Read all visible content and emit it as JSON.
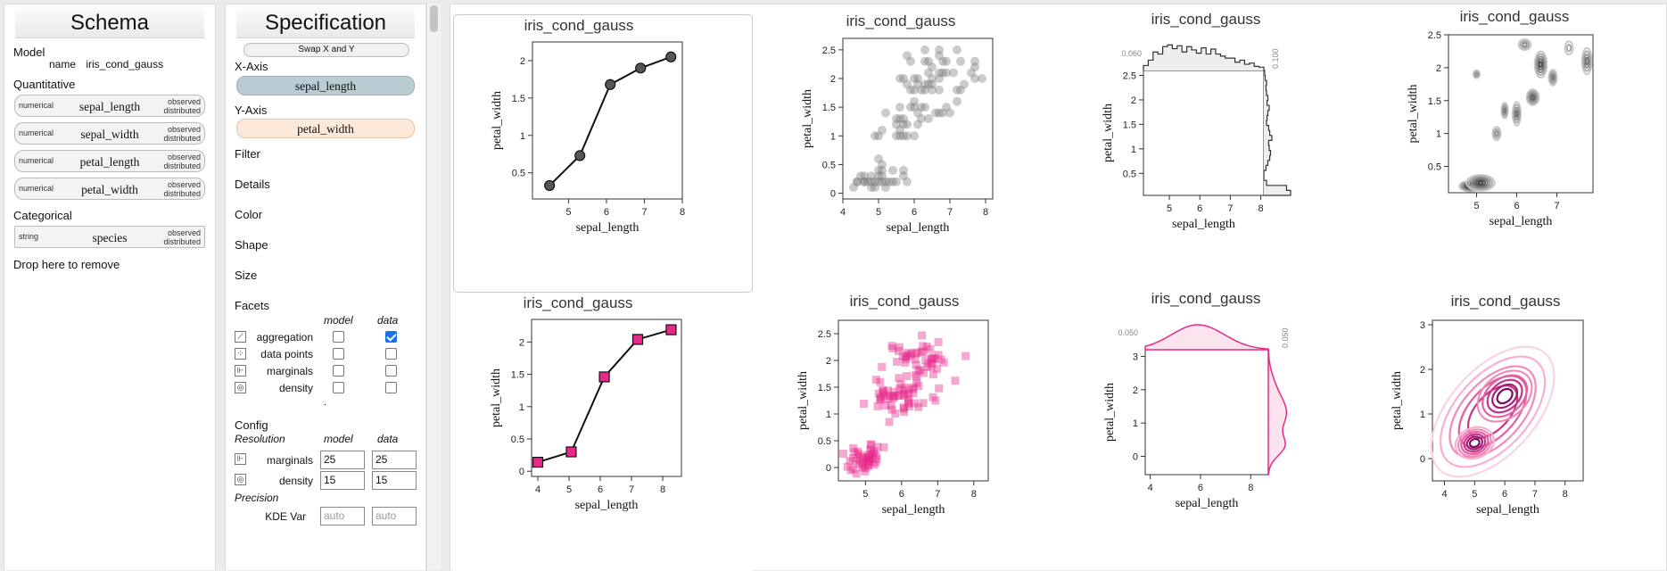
{
  "schema": {
    "title": "Schema",
    "model_label": "Model",
    "name_key": "name",
    "name_value": "iris_cond_gauss",
    "quant_label": "Quantitative",
    "quant_fields": [
      {
        "type": "numerical",
        "name": "sepal_length",
        "obs1": "observed",
        "obs2": "distributed"
      },
      {
        "type": "numerical",
        "name": "sepal_width",
        "obs1": "observed",
        "obs2": "distributed"
      },
      {
        "type": "numerical",
        "name": "petal_length",
        "obs1": "observed",
        "obs2": "distributed"
      },
      {
        "type": "numerical",
        "name": "petal_width",
        "obs1": "observed",
        "obs2": "distributed"
      }
    ],
    "cat_label": "Categorical",
    "cat_fields": [
      {
        "type": "string",
        "name": "species",
        "obs1": "observed",
        "obs2": "distributed"
      }
    ],
    "drop_label": "Drop here to remove"
  },
  "spec": {
    "title": "Specification",
    "swap_label": "Swap X and Y",
    "x_label": "X-Axis",
    "x_field": "sepal_length",
    "y_label": "Y-Axis",
    "y_field": "petal_width",
    "filter": "Filter",
    "details": "Details",
    "color": "Color",
    "shape": "Shape",
    "size": "Size",
    "facets": "Facets",
    "col_model": "model",
    "col_data": "data",
    "facet_rows": [
      {
        "name": "aggregation",
        "icon": "aggregation-icon",
        "model": false,
        "data": true
      },
      {
        "name": "data points",
        "icon": "data-points-icon",
        "model": false,
        "data": false
      },
      {
        "name": "marginals",
        "icon": "marginals-icon",
        "model": false,
        "data": false
      },
      {
        "name": "density",
        "icon": "density-icon",
        "model": false,
        "data": false
      }
    ],
    "dot": ".",
    "config": "Config",
    "resolution": "Resolution",
    "res_rows": [
      {
        "name": "marginals",
        "model": "25",
        "data": "25"
      },
      {
        "name": "density",
        "model": "15",
        "data": "15"
      }
    ],
    "precision": "Precision",
    "kde_label": "KDE Var",
    "kde_model_ph": "auto",
    "kde_data_ph": "auto"
  },
  "colors": {
    "data_gray": "#555555",
    "model_pink": "#e7298a",
    "shelf_x": "#b8ccd2",
    "shelf_y": "#fde9d9",
    "checkbox_blue": "#1a73e8"
  },
  "charts": {
    "title": "iris_cond_gauss",
    "xlabel": "sepal_length",
    "ylabel": "petal_width",
    "marg_gray_x": "0.060",
    "marg_gray_y": "0.100",
    "marg_pink_x": "0.050",
    "marg_pink_y": "0.050"
  },
  "chart_data": [
    {
      "type": "line",
      "title": "iris_cond_gauss",
      "xlabel": "sepal_length",
      "ylabel": "petal_width",
      "x": [
        4.5,
        5.3,
        6.1,
        6.9,
        7.7
      ],
      "y": [
        0.33,
        0.73,
        1.68,
        1.9,
        2.05
      ],
      "xlim": [
        4.05,
        8.0
      ],
      "ylim": [
        0.15,
        2.25
      ],
      "xticks": [
        5,
        6,
        7,
        8
      ],
      "yticks": [
        0.5,
        1,
        1.5,
        2
      ],
      "marker": "circle",
      "color": "#555555"
    },
    {
      "type": "scatter",
      "title": "iris_cond_gauss",
      "xlabel": "sepal_length",
      "ylabel": "petal_width",
      "xlim": [
        4.0,
        8.2
      ],
      "ylim": [
        -0.1,
        2.7
      ],
      "xticks": [
        4,
        5,
        6,
        7,
        8
      ],
      "yticks": [
        0,
        0.5,
        1,
        1.5,
        2,
        2.5
      ],
      "color": "#555555",
      "points": [
        [
          4.3,
          0.1
        ],
        [
          4.4,
          0.2
        ],
        [
          4.4,
          0.2
        ],
        [
          4.5,
          0.3
        ],
        [
          4.6,
          0.2
        ],
        [
          4.6,
          0.2
        ],
        [
          4.6,
          0.3
        ],
        [
          4.7,
          0.2
        ],
        [
          4.8,
          0.1
        ],
        [
          4.8,
          0.2
        ],
        [
          4.8,
          0.3
        ],
        [
          4.9,
          0.1
        ],
        [
          4.9,
          0.2
        ],
        [
          5.0,
          0.2
        ],
        [
          5.0,
          0.3
        ],
        [
          5.0,
          0.4
        ],
        [
          5.0,
          0.6
        ],
        [
          5.1,
          0.2
        ],
        [
          5.1,
          0.3
        ],
        [
          5.1,
          0.4
        ],
        [
          5.1,
          0.5
        ],
        [
          5.2,
          0.1
        ],
        [
          5.2,
          0.2
        ],
        [
          5.3,
          0.2
        ],
        [
          5.4,
          0.2
        ],
        [
          5.4,
          0.4
        ],
        [
          5.5,
          0.2
        ],
        [
          5.7,
          0.3
        ],
        [
          5.7,
          0.4
        ],
        [
          5.8,
          0.2
        ],
        [
          4.9,
          1.0
        ],
        [
          5.0,
          1.0
        ],
        [
          5.1,
          1.1
        ],
        [
          5.5,
          1.0
        ],
        [
          5.6,
          1.0
        ],
        [
          5.7,
          1.0
        ],
        [
          5.8,
          1.0
        ],
        [
          6.0,
          1.0
        ],
        [
          5.2,
          1.4
        ],
        [
          5.6,
          1.1
        ],
        [
          5.5,
          1.2
        ],
        [
          5.5,
          1.3
        ],
        [
          5.6,
          1.3
        ],
        [
          5.7,
          1.3
        ],
        [
          5.8,
          1.2
        ],
        [
          5.9,
          1.5
        ],
        [
          6.0,
          1.6
        ],
        [
          6.1,
          1.4
        ],
        [
          6.2,
          1.3
        ],
        [
          6.3,
          1.5
        ],
        [
          6.4,
          1.3
        ],
        [
          6.6,
          1.4
        ],
        [
          6.7,
          1.4
        ],
        [
          6.8,
          1.4
        ],
        [
          7.0,
          1.4
        ],
        [
          6.9,
          1.5
        ],
        [
          6.1,
          1.2
        ],
        [
          6.2,
          1.5
        ],
        [
          5.7,
          1.2
        ],
        [
          5.9,
          1.8
        ],
        [
          6.0,
          1.8
        ],
        [
          6.3,
          1.8
        ],
        [
          6.1,
          1.9
        ],
        [
          6.5,
          2.0
        ],
        [
          6.7,
          2.1
        ],
        [
          6.9,
          2.3
        ],
        [
          7.7,
          2.3
        ],
        [
          7.2,
          2.5
        ],
        [
          6.3,
          2.5
        ],
        [
          6.7,
          2.5
        ],
        [
          6.4,
          2.3
        ],
        [
          5.8,
          2.4
        ],
        [
          6.8,
          2.3
        ],
        [
          7.7,
          2.0
        ],
        [
          7.9,
          2.0
        ],
        [
          7.3,
          1.8
        ],
        [
          7.2,
          1.6
        ],
        [
          6.5,
          1.8
        ],
        [
          6.0,
          1.5
        ],
        [
          5.6,
          1.5
        ],
        [
          6.4,
          2.1
        ],
        [
          6.9,
          2.1
        ],
        [
          7.4,
          1.9
        ],
        [
          6.2,
          1.8
        ],
        [
          5.8,
          1.9
        ],
        [
          5.7,
          2.0
        ],
        [
          6.5,
          2.2
        ],
        [
          6.3,
          1.9
        ],
        [
          6.7,
          1.8
        ],
        [
          7.2,
          1.8
        ],
        [
          6.4,
          1.9
        ],
        [
          7.1,
          2.1
        ],
        [
          7.6,
          2.1
        ],
        [
          6.8,
          2.1
        ],
        [
          6.1,
          2.0
        ],
        [
          5.9,
          2.3
        ],
        [
          6.7,
          2.0
        ],
        [
          6.3,
          2.3
        ],
        [
          6.5,
          1.9
        ],
        [
          7.7,
          2.2
        ],
        [
          6.7,
          2.4
        ],
        [
          5.6,
          2.0
        ],
        [
          6.0,
          2.0
        ],
        [
          7.3,
          2.3
        ]
      ]
    },
    {
      "type": "histogram",
      "title": "iris_cond_gauss",
      "xlabel": "sepal_length",
      "ylabel": "petal_width",
      "xlim": [
        4.15,
        8.1
      ],
      "ylim": [
        0.05,
        2.6
      ],
      "xticks": [
        5,
        6,
        7,
        8
      ],
      "yticks": [
        0.5,
        1,
        1.5,
        2,
        2.5
      ],
      "x_hist": [
        0.012,
        0.025,
        0.045,
        0.04,
        0.058,
        0.062,
        0.053,
        0.06,
        0.045,
        0.058,
        0.05,
        0.042,
        0.055,
        0.04,
        0.052,
        0.04,
        0.035,
        0.03,
        0.03,
        0.02,
        0.025,
        0.015,
        0.018,
        0.01,
        0.008
      ],
      "y_hist": [
        0.1,
        0.085,
        0.01,
        0.0,
        0.0,
        0.008,
        0.015,
        0.022,
        0.025,
        0.02,
        0.018,
        0.03,
        0.022,
        0.018,
        0.01,
        0.012,
        0.015,
        0.02,
        0.012,
        0.015,
        0.01,
        0.008,
        0.01,
        0.005,
        0.003
      ],
      "x_tick": "0.060",
      "y_tick": "0.100",
      "color": "#555555"
    },
    {
      "type": "contour",
      "title": "iris_cond_gauss",
      "xlabel": "sepal_length",
      "ylabel": "petal_width",
      "xlim": [
        4.3,
        7.9
      ],
      "ylim": [
        0.1,
        2.5
      ],
      "xticks": [
        5,
        6,
        7
      ],
      "yticks": [
        0.5,
        1,
        1.5,
        2,
        2.5
      ],
      "peaks": [
        [
          4.85,
          0.2,
          1.0,
          0.28,
          0.08
        ],
        [
          5.1,
          0.25,
          0.8,
          0.35,
          0.12
        ],
        [
          6.6,
          2.05,
          0.75,
          0.15,
          0.2
        ],
        [
          6.4,
          1.55,
          0.65,
          0.15,
          0.12
        ],
        [
          6.0,
          1.3,
          0.55,
          0.1,
          0.18
        ],
        [
          5.7,
          1.35,
          0.5,
          0.08,
          0.12
        ],
        [
          7.75,
          2.1,
          0.55,
          0.12,
          0.2
        ],
        [
          5.0,
          1.9,
          0.4,
          0.08,
          0.06
        ],
        [
          6.2,
          2.35,
          0.45,
          0.15,
          0.08
        ],
        [
          5.5,
          1.0,
          0.4,
          0.1,
          0.1
        ],
        [
          6.9,
          1.85,
          0.5,
          0.1,
          0.12
        ],
        [
          7.3,
          2.3,
          0.35,
          0.1,
          0.1
        ]
      ],
      "color": "#555555"
    },
    {
      "type": "line",
      "title": "iris_cond_gauss",
      "xlabel": "sepal_length",
      "ylabel": "petal_width",
      "x": [
        4.0,
        5.07,
        6.13,
        7.2,
        8.27
      ],
      "y": [
        0.14,
        0.3,
        1.46,
        2.04,
        2.19
      ],
      "xlim": [
        3.8,
        8.6
      ],
      "ylim": [
        -0.08,
        2.35
      ],
      "xticks": [
        4,
        5,
        6,
        7,
        8
      ],
      "yticks": [
        0,
        0.5,
        1,
        1.5,
        2
      ],
      "marker": "square",
      "color": "#e7298a"
    },
    {
      "type": "scatter",
      "title": "iris_cond_gauss",
      "xlabel": "sepal_length",
      "ylabel": "petal_width",
      "xlim": [
        4.25,
        8.4
      ],
      "ylim": [
        -0.25,
        2.75
      ],
      "xticks": [
        5,
        6,
        7,
        8
      ],
      "yticks": [
        0,
        0.5,
        1,
        1.5,
        2,
        2.5
      ],
      "color": "#e7298a",
      "marker": "square",
      "clusters": [
        [
          5.0,
          0.2,
          0.33,
          0.16,
          45
        ],
        [
          5.9,
          1.3,
          0.5,
          0.2,
          50
        ],
        [
          6.6,
          2.0,
          0.6,
          0.27,
          50
        ]
      ]
    },
    {
      "type": "kde",
      "title": "iris_cond_gauss",
      "xlabel": "sepal_length",
      "ylabel": "petal_width",
      "xlim": [
        3.8,
        8.7
      ],
      "ylim": [
        -0.55,
        3.2
      ],
      "xticks": [
        4,
        6,
        8
      ],
      "yticks": [
        0,
        1,
        2,
        3
      ],
      "x_tick": "0.050",
      "y_tick": "0.050",
      "color": "#e7298a"
    },
    {
      "type": "contour",
      "title": "iris_cond_gauss",
      "xlabel": "sepal_length",
      "ylabel": "petal_width",
      "xlim": [
        3.6,
        8.6
      ],
      "ylim": [
        -0.5,
        3.1
      ],
      "xticks": [
        4,
        5,
        6,
        7,
        8
      ],
      "yticks": [
        0,
        1,
        2,
        3
      ],
      "peaks": [
        [
          5.0,
          0.35,
          0.42,
          0.35,
          1.0,
          -0.1
        ],
        [
          6.0,
          1.3,
          0.75,
          0.5,
          0.7,
          0.1
        ],
        [
          6.5,
          1.9,
          0.7,
          0.45,
          0.6,
          0.1
        ]
      ],
      "color": "#e7298a"
    }
  ]
}
